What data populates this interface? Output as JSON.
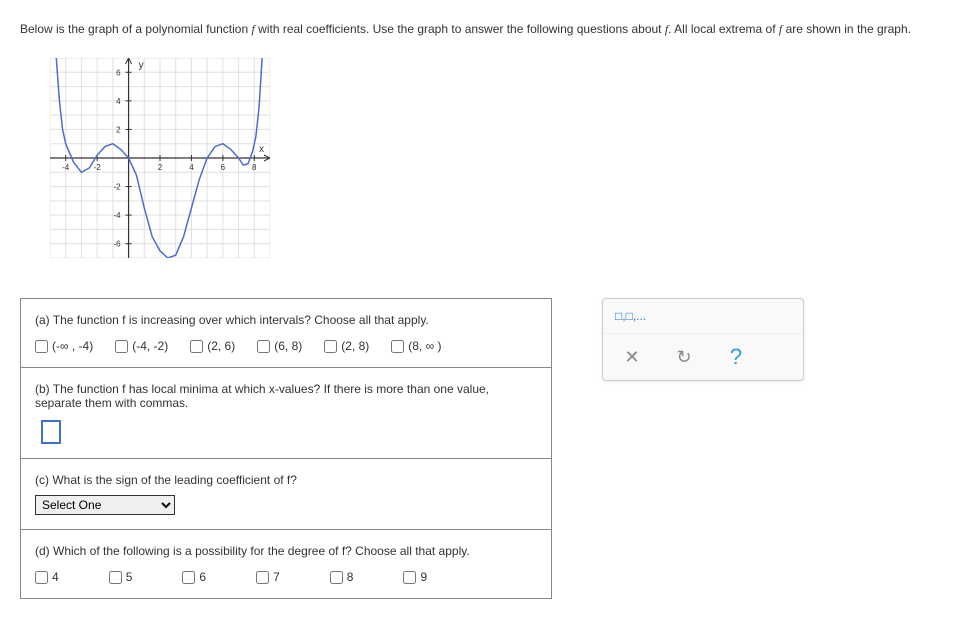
{
  "prompt": {
    "text_before_f1": "Below is the graph of a polynomial function ",
    "f1": "f",
    "text_mid": " with real coefficients. Use the graph to answer the following questions about ",
    "f2": "f",
    "text_after_f2": ". All local extrema of ",
    "f3": "f",
    "text_end": " are shown in the graph."
  },
  "graph": {
    "xmin": -5,
    "xmax": 9,
    "ymin": -7,
    "ymax": 7,
    "xticks": [
      -4,
      -2,
      2,
      4,
      6,
      8
    ],
    "yticks": [
      -6,
      -4,
      -2,
      2,
      4,
      6
    ],
    "grid_color": "#e0e0e0",
    "axis_color": "#333333",
    "curve_color": "#4b6ecb",
    "x_label": "x",
    "y_label": "y",
    "curve_points": [
      [
        -4.6,
        7
      ],
      [
        -4.4,
        4
      ],
      [
        -4.2,
        2
      ],
      [
        -4,
        1
      ],
      [
        -3.5,
        -0.3
      ],
      [
        -3,
        -1
      ],
      [
        -2.5,
        -0.7
      ],
      [
        -2,
        0.2
      ],
      [
        -1.5,
        0.8
      ],
      [
        -1,
        1
      ],
      [
        -0.5,
        0.6
      ],
      [
        0,
        0
      ],
      [
        0.5,
        -1.2
      ],
      [
        1,
        -3.5
      ],
      [
        1.5,
        -5.5
      ],
      [
        2,
        -6.5
      ],
      [
        2.5,
        -7
      ],
      [
        3,
        -6.8
      ],
      [
        3.5,
        -5.5
      ],
      [
        4,
        -3.5
      ],
      [
        4.5,
        -1.5
      ],
      [
        5,
        0
      ],
      [
        5.5,
        0.8
      ],
      [
        6,
        1
      ],
      [
        6.5,
        0.6
      ],
      [
        7,
        0
      ],
      [
        7.3,
        -0.5
      ],
      [
        7.6,
        -0.4
      ],
      [
        7.9,
        0.5
      ],
      [
        8.1,
        1.5
      ],
      [
        8.3,
        3.5
      ],
      [
        8.5,
        7
      ]
    ]
  },
  "questions": {
    "a": {
      "prompt": "(a) The function f is increasing over which intervals? Choose all that apply.",
      "options": [
        "(-∞ , -4)",
        "(-4, -2)",
        "(2, 6)",
        "(6, 8)",
        "(2, 8)",
        "(8, ∞ )"
      ]
    },
    "b": {
      "prompt": "(b) The function f has local minima at which x-values? If there is more than one value, separate them with commas."
    },
    "c": {
      "prompt": "(c) What is the sign of the leading coefficient of f?",
      "select_placeholder": "Select One"
    },
    "d": {
      "prompt": "(d) Which of the following is a possibility for the degree of f? Choose all that apply.",
      "options": [
        "4",
        "5",
        "6",
        "7",
        "8",
        "9"
      ]
    }
  },
  "side_panel": {
    "hint": "□,□,...",
    "close": "✕",
    "reset": "↻",
    "help": "?"
  }
}
